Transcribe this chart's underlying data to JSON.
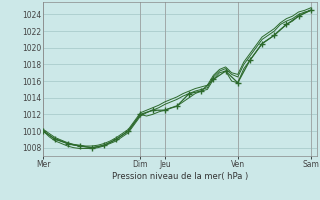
{
  "title": "",
  "xlabel": "Pression niveau de la mer( hPa )",
  "bg_color": "#cce8e8",
  "grid_color": "#aacccc",
  "line_color": "#2d6a2d",
  "ylim": [
    1007,
    1025.5
  ],
  "yticks": [
    1008,
    1010,
    1012,
    1014,
    1016,
    1018,
    1020,
    1022,
    1024
  ],
  "day_labels": [
    "Mer",
    "Dim",
    "Jeu",
    "Ven",
    "Sam"
  ],
  "day_positions": [
    0,
    96,
    120,
    192,
    264
  ],
  "xlim": [
    0,
    270
  ],
  "series1_x": [
    0,
    6,
    12,
    18,
    24,
    30,
    36,
    42,
    48,
    54,
    60,
    66,
    72,
    78,
    84,
    90,
    96,
    102,
    108,
    114,
    120,
    126,
    132,
    138,
    144,
    150,
    156,
    162,
    168,
    174,
    180,
    186,
    192,
    198,
    204,
    210,
    216,
    222,
    228,
    234,
    240,
    246,
    252,
    258,
    264
  ],
  "series1_y": [
    1010.0,
    1009.5,
    1009.0,
    1008.8,
    1008.5,
    1008.3,
    1008.2,
    1008.1,
    1008.0,
    1008.1,
    1008.3,
    1008.6,
    1009.0,
    1009.5,
    1010.0,
    1011.0,
    1012.0,
    1011.8,
    1012.0,
    1012.3,
    1012.5,
    1012.8,
    1013.0,
    1013.5,
    1014.0,
    1014.5,
    1014.8,
    1015.0,
    1016.2,
    1017.0,
    1017.2,
    1016.0,
    1015.8,
    1017.5,
    1018.5,
    1019.5,
    1020.5,
    1021.0,
    1021.5,
    1022.2,
    1022.8,
    1023.2,
    1023.8,
    1024.2,
    1024.5
  ],
  "series2_x": [
    0,
    6,
    12,
    18,
    24,
    30,
    36,
    42,
    48,
    54,
    60,
    66,
    72,
    78,
    84,
    90,
    96,
    102,
    108,
    114,
    120,
    126,
    132,
    138,
    144,
    150,
    156,
    162,
    168,
    174,
    180,
    186,
    192,
    198,
    204,
    210,
    216,
    222,
    228,
    234,
    240,
    246,
    252,
    258,
    264
  ],
  "series2_y": [
    1010.0,
    1009.3,
    1008.8,
    1008.5,
    1008.2,
    1008.0,
    1007.9,
    1007.9,
    1007.9,
    1008.0,
    1008.2,
    1008.5,
    1008.8,
    1009.3,
    1009.8,
    1010.8,
    1011.8,
    1012.2,
    1012.5,
    1012.8,
    1013.2,
    1013.5,
    1013.8,
    1014.2,
    1014.5,
    1014.8,
    1015.0,
    1015.2,
    1016.5,
    1017.2,
    1017.5,
    1016.8,
    1016.5,
    1018.0,
    1019.0,
    1020.0,
    1021.0,
    1021.5,
    1022.0,
    1022.8,
    1023.2,
    1023.5,
    1024.0,
    1024.3,
    1024.5
  ],
  "series3_x": [
    0,
    6,
    12,
    18,
    24,
    30,
    36,
    42,
    48,
    54,
    60,
    66,
    72,
    78,
    84,
    90,
    96,
    102,
    108,
    114,
    120,
    126,
    132,
    138,
    144,
    150,
    156,
    162,
    168,
    174,
    180,
    186,
    192,
    198,
    204,
    210,
    216,
    222,
    228,
    234,
    240,
    246,
    252,
    258,
    264
  ],
  "series3_y": [
    1010.2,
    1009.7,
    1009.2,
    1008.9,
    1008.6,
    1008.4,
    1008.3,
    1008.2,
    1008.2,
    1008.3,
    1008.5,
    1008.8,
    1009.2,
    1009.7,
    1010.2,
    1011.2,
    1012.2,
    1012.5,
    1012.8,
    1013.1,
    1013.5,
    1013.8,
    1014.1,
    1014.5,
    1014.8,
    1015.1,
    1015.3,
    1015.5,
    1016.7,
    1017.4,
    1017.7,
    1017.0,
    1016.8,
    1018.3,
    1019.3,
    1020.3,
    1021.3,
    1021.8,
    1022.3,
    1023.0,
    1023.5,
    1023.8,
    1024.3,
    1024.5,
    1024.8
  ],
  "marker_x": [
    0,
    12,
    24,
    36,
    48,
    60,
    72,
    84,
    96,
    108,
    120,
    132,
    144,
    156,
    168,
    180,
    192,
    204,
    216,
    228,
    240,
    252,
    264
  ],
  "marker_y": [
    1010.0,
    1009.0,
    1008.5,
    1008.2,
    1008.0,
    1008.3,
    1009.0,
    1010.0,
    1012.0,
    1012.5,
    1012.5,
    1013.0,
    1014.5,
    1014.8,
    1016.2,
    1017.2,
    1015.8,
    1018.5,
    1020.5,
    1021.5,
    1022.8,
    1023.8,
    1024.5
  ]
}
